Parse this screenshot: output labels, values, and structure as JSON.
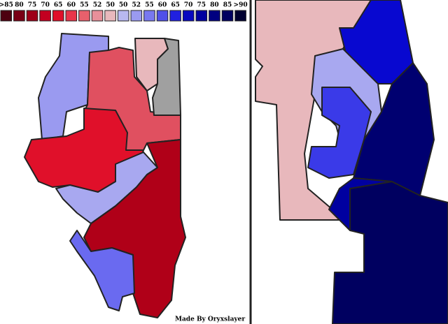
{
  "legend": {
    "labels": [
      ">85",
      "80",
      "75",
      "70",
      "65",
      "60",
      "55",
      "52",
      "50",
      "50",
      "52",
      "55",
      "60",
      "65",
      "70",
      "75",
      "80",
      "85",
      ">90"
    ],
    "colors": [
      "#4d0010",
      "#7a0015",
      "#9e0018",
      "#c30020",
      "#e0102a",
      "#e8364a",
      "#e8606c",
      "#e8909a",
      "#e8b8bc",
      "#b8b8f0",
      "#9a9af0",
      "#7878f0",
      "#5050e8",
      "#2020e0",
      "#0808c0",
      "#0000a0",
      "#000080",
      "#000060",
      "#000030"
    ]
  },
  "credit": "Made By Oryxslayer"
}
